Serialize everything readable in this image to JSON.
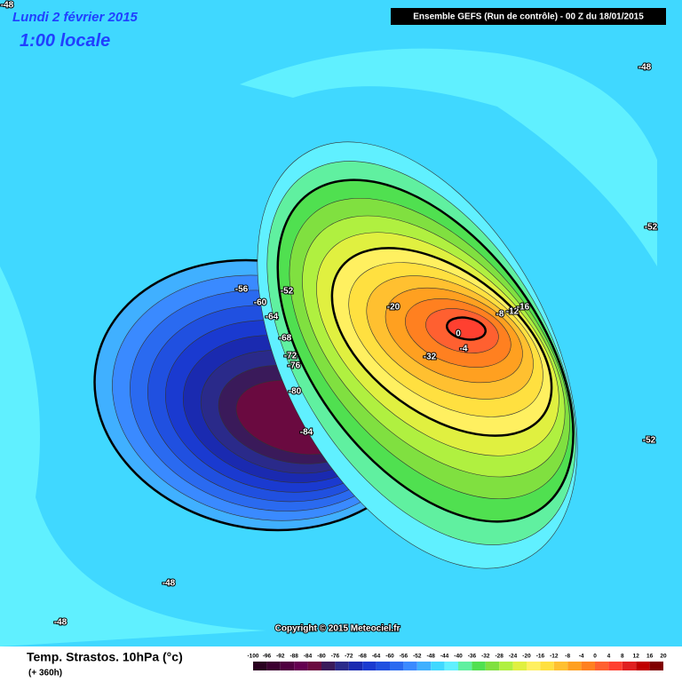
{
  "header": {
    "date": "Lundi 2 février 2015",
    "time": "1:00 locale",
    "run": "Ensemble GEFS  (Run de contrôle)  -  00 Z du 18/01/2015"
  },
  "copyright": "Copyright © 2015 Meteociel.fr",
  "footer": {
    "title": "Temp. Strastos. 10hPa (°c)",
    "lead": "(+ 360h)"
  },
  "legend": {
    "labels": [
      "-100",
      "-96",
      "-92",
      "-88",
      "-84",
      "-80",
      "-76",
      "-72",
      "-68",
      "-64",
      "-60",
      "-56",
      "-52",
      "-48",
      "-44",
      "-40",
      "-36",
      "-32",
      "-28",
      "-24",
      "-20",
      "-16",
      "-12",
      "-8",
      "-4",
      "0",
      "4",
      "8",
      "12",
      "16",
      "20"
    ],
    "colors": [
      "#2a0020",
      "#3c0030",
      "#500040",
      "#640050",
      "#6a0a40",
      "#3a1a5a",
      "#2a2a8a",
      "#1a2ab0",
      "#1a3ad0",
      "#2050e0",
      "#2a6af0",
      "#3a8aff",
      "#40b0ff",
      "#40d8ff",
      "#60f0ff",
      "#60f0a0",
      "#50e050",
      "#80e040",
      "#b0f040",
      "#e0f040",
      "#fff060",
      "#ffe040",
      "#ffc030",
      "#ffa020",
      "#ff8020",
      "#ff6030",
      "#ff4030",
      "#e02020",
      "#c00000",
      "#800000"
    ]
  },
  "contour_labels": [
    "-48",
    "-48",
    "-52",
    "-52",
    "-48",
    "-48",
    "-56",
    "-52",
    "-60",
    "-64",
    "-68",
    "-72",
    "-76",
    "-80",
    "-84",
    "-20",
    "-8",
    "-12",
    "-16",
    "0",
    "-4",
    "-32"
  ]
}
